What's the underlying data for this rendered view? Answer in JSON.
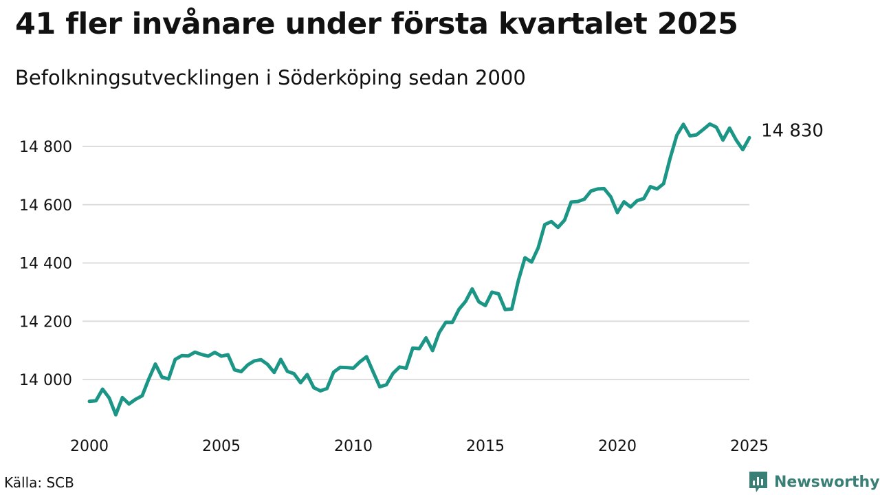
{
  "title": "41 fler invånare under första kvartalet 2025",
  "subtitle": "Befolkningsutvecklingen i Söderköping sedan 2000",
  "source": "Källa: SCB",
  "brand": {
    "name": "Newsworthy",
    "icon": "bar-chart-bubble-icon",
    "color": "#3a7f76"
  },
  "chart_data": {
    "type": "line",
    "title": "",
    "xlabel": "",
    "ylabel": "",
    "x_ticks": [
      2000,
      2005,
      2010,
      2015,
      2020,
      2025
    ],
    "y_ticks": [
      14000,
      14200,
      14400,
      14600,
      14800
    ],
    "y_tick_labels": [
      "14 000",
      "14 200",
      "14 400",
      "14 600",
      "14 800"
    ],
    "xlim": [
      2000,
      2025
    ],
    "ylim": [
      13870,
      14920
    ],
    "grid": "horizontal",
    "line_color": "#1b9585",
    "end_label": "14 830",
    "series": [
      {
        "name": "",
        "x": [
          2000,
          2000.25,
          2000.5,
          2000.75,
          2001,
          2001.25,
          2001.5,
          2001.75,
          2002,
          2002.25,
          2002.5,
          2002.75,
          2003,
          2003.25,
          2003.5,
          2003.75,
          2004,
          2004.25,
          2004.5,
          2004.75,
          2005,
          2005.25,
          2005.5,
          2005.75,
          2006,
          2006.25,
          2006.5,
          2006.75,
          2007,
          2007.25,
          2007.5,
          2007.75,
          2008,
          2008.25,
          2008.5,
          2008.75,
          2009,
          2009.25,
          2009.5,
          2009.75,
          2010,
          2010.25,
          2010.5,
          2010.75,
          2011,
          2011.25,
          2011.5,
          2011.75,
          2012,
          2012.25,
          2012.5,
          2012.75,
          2013,
          2013.25,
          2013.5,
          2013.75,
          2014,
          2014.25,
          2014.5,
          2014.75,
          2015,
          2015.25,
          2015.5,
          2015.75,
          2016,
          2016.25,
          2016.5,
          2016.75,
          2017,
          2017.25,
          2017.5,
          2017.75,
          2018,
          2018.25,
          2018.5,
          2018.75,
          2019,
          2019.25,
          2019.5,
          2019.75,
          2020,
          2020.25,
          2020.5,
          2020.75,
          2021,
          2021.25,
          2021.5,
          2021.75,
          2022,
          2022.25,
          2022.5,
          2022.75,
          2023,
          2023.25,
          2023.5,
          2023.75,
          2024,
          2024.25,
          2024.5,
          2024.75,
          2025
        ],
        "values": [
          13925,
          13927,
          13967,
          13937,
          13879,
          13938,
          13916,
          13932,
          13944,
          14002,
          14053,
          14008,
          14002,
          14069,
          14082,
          14081,
          14094,
          14086,
          14080,
          14093,
          14080,
          14085,
          14033,
          14027,
          14050,
          14064,
          14068,
          14052,
          14024,
          14069,
          14028,
          14020,
          13989,
          14017,
          13972,
          13961,
          13969,
          14025,
          14042,
          14041,
          14039,
          14061,
          14078,
          14026,
          13975,
          13982,
          14021,
          14043,
          14039,
          14108,
          14106,
          14143,
          14099,
          14161,
          14196,
          14196,
          14241,
          14268,
          14311,
          14267,
          14254,
          14300,
          14294,
          14240,
          14242,
          14340,
          14418,
          14403,
          14452,
          14532,
          14542,
          14522,
          14547,
          14609,
          14611,
          14619,
          14647,
          14654,
          14655,
          14627,
          14573,
          14610,
          14592,
          14614,
          14621,
          14662,
          14654,
          14672,
          14760,
          14838,
          14876,
          14836,
          14840,
          14858,
          14877,
          14866,
          14822,
          14863,
          14822,
          14789,
          14830
        ]
      }
    ]
  }
}
